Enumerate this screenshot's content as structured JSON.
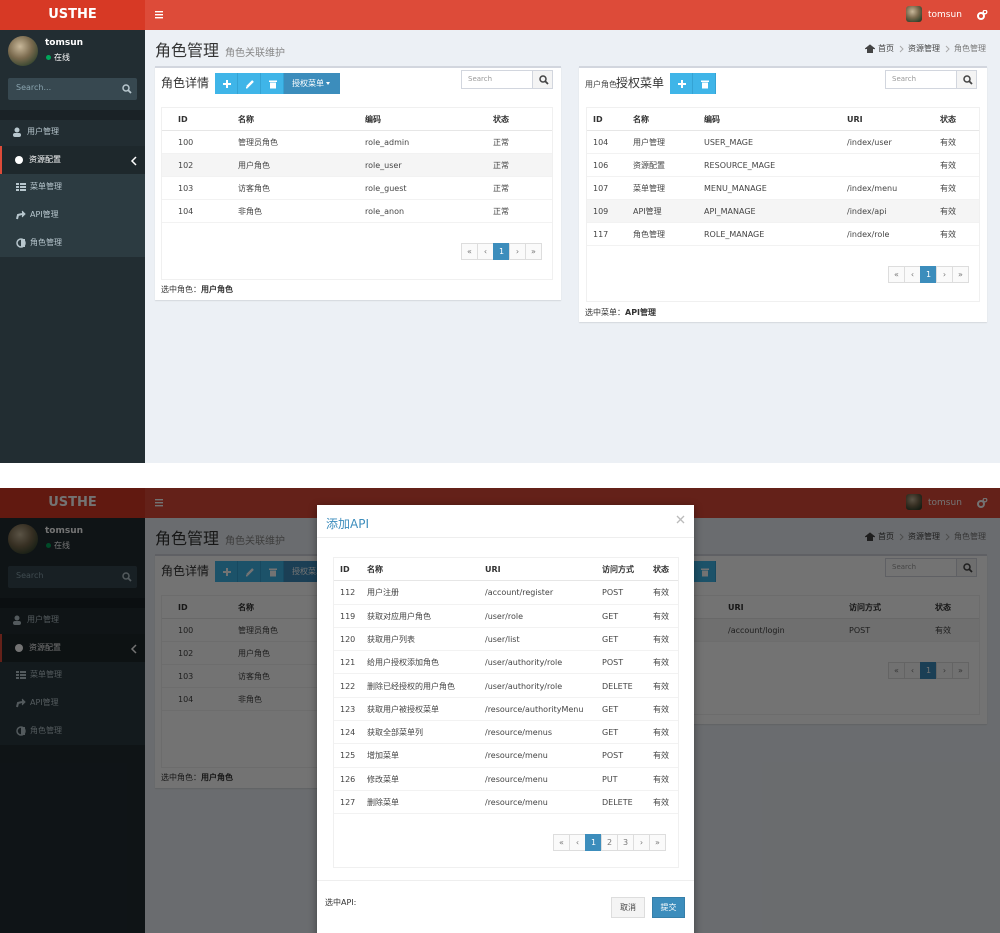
{
  "screens": [
    {
      "header": {
        "logo": "USTHE",
        "user": "tomsun"
      },
      "sidebar": {
        "user": "tomsun",
        "status": "在线",
        "search": "Search...",
        "menu": [
          "用户管理",
          "资源配置",
          "菜单管理",
          "API管理",
          "角色管理"
        ]
      },
      "content": {
        "title": "角色管理",
        "subtitle": "角色关联维护",
        "breadcrumb": [
          "首页",
          "资源管理",
          "角色管理"
        ],
        "panels": [
          {
            "title": "角色详情",
            "dropdown": "授权菜单",
            "search": "Search",
            "columns": [
              "ID",
              "名称",
              "编码",
              "状态"
            ],
            "rows": [
              [
                "100",
                "管理员角色",
                "role_admin",
                "正常"
              ],
              [
                "102",
                "用户角色",
                "role_user",
                "正常"
              ],
              [
                "103",
                "访客角色",
                "role_guest",
                "正常"
              ],
              [
                "104",
                "非角色",
                "role_anon",
                "正常"
              ]
            ],
            "pagination": [
              "«",
              "‹",
              "1",
              "›",
              "»"
            ],
            "footer_label": "选中角色：",
            "footer_value": "用户角色"
          },
          {
            "prefix": "用户角色",
            "title": "授权菜单",
            "search": "Search",
            "columns": [
              "ID",
              "名称",
              "编码",
              "URI",
              "状态"
            ],
            "rows": [
              [
                "104",
                "用户管理",
                "USER_MAGE",
                "/index/user",
                "有效"
              ],
              [
                "106",
                "资源配置",
                "RESOURCE_MAGE",
                null,
                "有效"
              ],
              [
                "107",
                "菜单管理",
                "MENU_MANAGE",
                "/index/menu",
                "有效"
              ],
              [
                "109",
                "API管理",
                "API_MANAGE",
                "/index/api",
                "有效"
              ],
              [
                "117",
                "角色管理",
                "ROLE_MANAGE",
                "/index/role",
                "有效"
              ]
            ],
            "pagination": [
              "«",
              "‹",
              "1",
              "›",
              "»"
            ],
            "footer_label": "选中菜单：",
            "footer_value": "API管理"
          }
        ]
      }
    },
    {
      "header": {
        "logo": "USTHE",
        "user": "tomsun"
      },
      "sidebar": {
        "user": "tomsun",
        "status": "在线",
        "search": "Search",
        "menu": [
          "用户管理",
          "资源配置",
          "菜单管理",
          "API管理",
          "角色管理"
        ]
      },
      "content": {
        "title": "角色管理",
        "subtitle": "角色关联维护",
        "breadcrumb": [
          "首页",
          "资源管理",
          "角色管理"
        ],
        "panels": [
          {
            "title": "角色详情",
            "dropdown": "授权菜单",
            "columns": [
              "ID",
              "名称"
            ],
            "rows": [
              [
                "100",
                "管理员角色"
              ],
              [
                "102",
                "用户角色"
              ],
              [
                "103",
                "访客角色"
              ],
              [
                "104",
                "非角色"
              ]
            ],
            "footer_label": "选中角色：",
            "footer_value": "用户角色"
          },
          {
            "search": "Search",
            "columns": [
              "URI",
              "访问方式",
              "状态"
            ],
            "rows": [
              [
                "/account/login",
                "POST",
                "有效"
              ]
            ],
            "pagination": [
              "«",
              "‹",
              "1",
              "›",
              "»"
            ]
          }
        ]
      },
      "modal": {
        "title": "添加API",
        "columns": [
          "ID",
          "名称",
          "URI",
          "访问方式",
          "状态"
        ],
        "rows": [
          [
            "112",
            "用户注册",
            "/account/register",
            "POST",
            "有效"
          ],
          [
            "119",
            "获取对应用户角色",
            "/user/role",
            "GET",
            "有效"
          ],
          [
            "120",
            "获取用户列表",
            "/user/list",
            "GET",
            "有效"
          ],
          [
            "121",
            "给用户授权添加角色",
            "/user/authority/role",
            "POST",
            "有效"
          ],
          [
            "122",
            "删除已经授权的用户角色",
            "/user/authority/role",
            "DELETE",
            "有效"
          ],
          [
            "123",
            "获取用户被授权菜单",
            "/resource/authorityMenu",
            "GET",
            "有效"
          ],
          [
            "124",
            "获取全部菜单列",
            "/resource/menus",
            "GET",
            "有效"
          ],
          [
            "125",
            "增加菜单",
            "/resource/menu",
            "POST",
            "有效"
          ],
          [
            "126",
            "修改菜单",
            "/resource/menu",
            "PUT",
            "有效"
          ],
          [
            "127",
            "删除菜单",
            "/resource/menu",
            "DELETE",
            "有效"
          ]
        ],
        "pagination": [
          "«",
          "‹",
          "1",
          "2",
          "3",
          "›",
          "»"
        ],
        "footer_label": "选中API:",
        "buttons": [
          "取消",
          "提交"
        ]
      }
    }
  ]
}
